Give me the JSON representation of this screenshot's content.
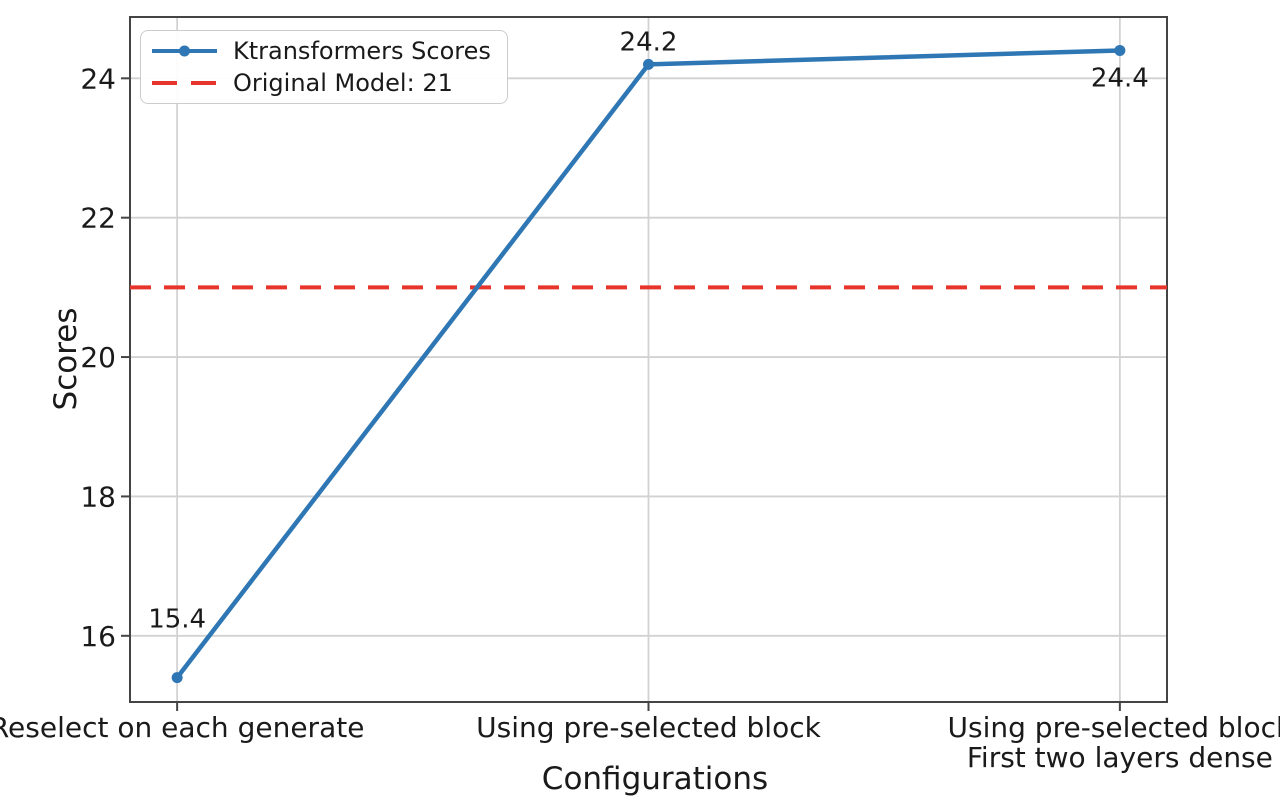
{
  "chart_data": {
    "type": "line",
    "title": "",
    "xlabel": "Configurations",
    "ylabel": "Scores",
    "categories": [
      "Reselect on each generate",
      "Using pre-selected block",
      "Using pre-selected block\nFirst two layers dense"
    ],
    "series": [
      {
        "name": "Ktransformers Scores",
        "color": "#2f77b4",
        "marker": "circle",
        "values": [
          15.4,
          24.2,
          24.4
        ]
      }
    ],
    "reference_line": {
      "label": "Original Model: 21",
      "value": 21,
      "color": "#e8352b",
      "style": "dashed"
    },
    "annotations": [
      {
        "text": "15.4",
        "x": 0,
        "y": 15.4,
        "dy": -50
      },
      {
        "text": "24.2",
        "x": 1,
        "y": 24.2,
        "dy": -14
      },
      {
        "text": "24.4",
        "x": 2,
        "y": 24.4,
        "dy": 36
      }
    ],
    "yticks": [
      16,
      18,
      20,
      22,
      24
    ],
    "ylim": [
      15.05,
      24.88
    ],
    "xlim": [
      -0.1,
      2.1
    ],
    "grid": true,
    "legend_position": "upper left",
    "colors": {
      "grid": "#d2d2d2",
      "spine": "#444444",
      "text": "#1a1a1a"
    }
  }
}
